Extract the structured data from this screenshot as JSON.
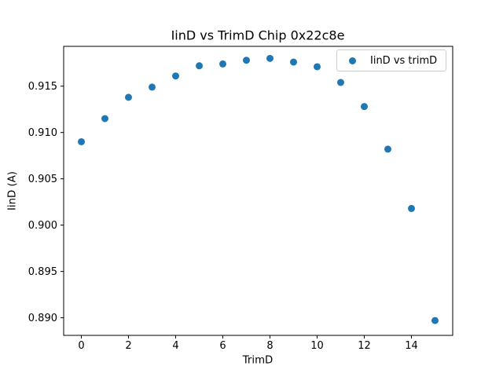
{
  "chart_data": {
    "type": "scatter",
    "title": "IinD vs TrimD Chip 0x22c8e",
    "xlabel": "TrimD",
    "ylabel": "IinD (A)",
    "series": [
      {
        "name": "IinD vs trimD",
        "color": "#1f77b4",
        "x": [
          0,
          1,
          2,
          3,
          4,
          5,
          6,
          7,
          8,
          9,
          10,
          11,
          12,
          13,
          14,
          15
        ],
        "y": [
          0.909,
          0.9115,
          0.9138,
          0.9149,
          0.9161,
          0.9172,
          0.9174,
          0.9178,
          0.918,
          0.9176,
          0.9171,
          0.9154,
          0.9128,
          0.9082,
          0.9018,
          0.8897
        ]
      }
    ],
    "xlim": [
      -0.75,
      15.75
    ],
    "ylim": [
      0.8881,
      0.9193
    ],
    "xticks": [
      0,
      2,
      4,
      6,
      8,
      10,
      12,
      14
    ],
    "yticks": [
      0.89,
      0.895,
      0.9,
      0.905,
      0.91,
      0.915
    ],
    "ytick_decimals": 3,
    "grid": false,
    "legend": {
      "label": "IinD vs trimD",
      "position": "upper right"
    },
    "colors": {
      "marker": "#1f77b4",
      "axis": "#000000",
      "legend_border": "#cccccc",
      "background": "#ffffff"
    }
  }
}
